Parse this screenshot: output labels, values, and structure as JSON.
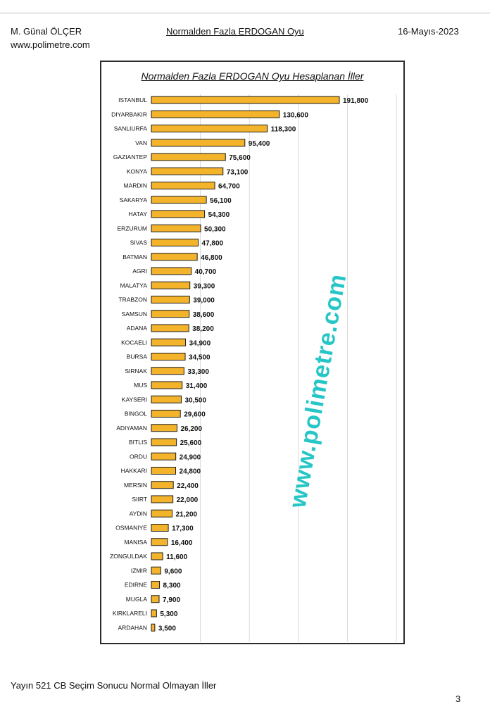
{
  "header": {
    "author": "M. Günal ÖLÇER",
    "website": "www.polimetre.com",
    "title": "Normalden Fazla ERDOGAN Oyu",
    "date": "16-Mayıs-2023"
  },
  "watermark": "www.polimetre.com",
  "footer": {
    "text": "Yayın 521 CB Seçim Sonucu Normal Olmayan İller",
    "page": "3"
  },
  "colors": {
    "bar": "#f3b32a",
    "watermark": "#26c6c6"
  },
  "chart_data": {
    "type": "bar",
    "orientation": "horizontal",
    "title": "Normalden Fazla ERDOGAN Oyu Hesaplanan İller",
    "xlim": [
      0,
      250000
    ],
    "grid": true,
    "categories": [
      "ISTANBUL",
      "DIYARBAKIR",
      "SANLIURFA",
      "VAN",
      "GAZIANTEP",
      "KONYA",
      "MARDIN",
      "SAKARYA",
      "HATAY",
      "ERZURUM",
      "SIVAS",
      "BATMAN",
      "AGRI",
      "MALATYA",
      "TRABZON",
      "SAMSUN",
      "ADANA",
      "KOCAELI",
      "BURSA",
      "SIRNAK",
      "MUS",
      "KAYSERI",
      "BINGOL",
      "ADIYAMAN",
      "BITLIS",
      "ORDU",
      "HAKKARI",
      "MERSIN",
      "SIIRT",
      "AYDIN",
      "OSMANIYE",
      "MANISA",
      "ZONGULDAK",
      "IZMIR",
      "EDIRNE",
      "MUGLA",
      "KIRKLARELI",
      "ARDAHAN"
    ],
    "values": [
      191800,
      130600,
      118300,
      95400,
      75600,
      73100,
      64700,
      56100,
      54300,
      50300,
      47800,
      46800,
      40700,
      39300,
      39000,
      38600,
      38200,
      34900,
      34500,
      33300,
      31400,
      30500,
      29600,
      26200,
      25600,
      24900,
      24800,
      22400,
      22000,
      21200,
      17300,
      16400,
      11600,
      9600,
      8300,
      7900,
      5300,
      3500
    ],
    "value_labels": [
      "191,800",
      "130,600",
      "118,300",
      "95,400",
      "75,600",
      "73,100",
      "64,700",
      "56,100",
      "54,300",
      "50,300",
      "47,800",
      "46,800",
      "40,700",
      "39,300",
      "39,000",
      "38,600",
      "38,200",
      "34,900",
      "34,500",
      "33,300",
      "31,400",
      "30,500",
      "29,600",
      "26,200",
      "25,600",
      "24,900",
      "24,800",
      "22,400",
      "22,000",
      "21,200",
      "17,300",
      "16,400",
      "11,600",
      "9,600",
      "8,300",
      "7,900",
      "5,300",
      "3,500"
    ]
  }
}
